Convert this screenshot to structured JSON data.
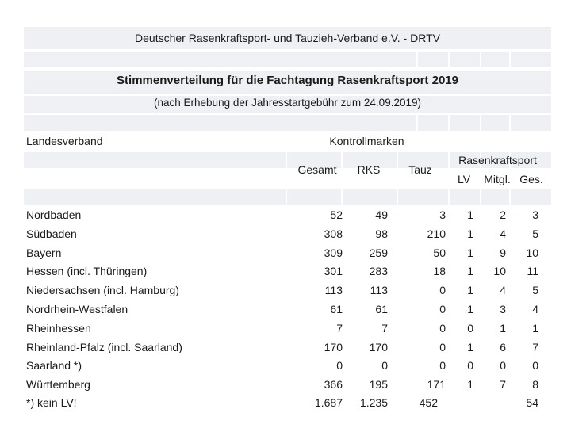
{
  "org": "Deutscher Rasenkraftsport- und Tauzieh-Verband e.V. - DRTV",
  "title": "Stimmenverteilung für die Fachtagung Rasenkraftsport 2019",
  "subtitle": "(nach Erhebung der Jahresstartgebühr zum 24.09.2019)",
  "headers": {
    "landesverband": "Landesverband",
    "kontrollmarken": "Kontrollmarken",
    "gesamt": "Gesamt",
    "rks": "RKS",
    "tauz": "Tauz",
    "rasenkraftsport": "Rasenkraftsport",
    "lv": "LV",
    "mitgl": "Mitgl.",
    "ges": "Ges."
  },
  "rows": [
    {
      "name": "Nordbaden",
      "gesamt": "52",
      "rks": "49",
      "tauz": "3",
      "lv": "1",
      "mitgl": "2",
      "ges": "3"
    },
    {
      "name": "Südbaden",
      "gesamt": "308",
      "rks": "98",
      "tauz": "210",
      "lv": "1",
      "mitgl": "4",
      "ges": "5"
    },
    {
      "name": "Bayern",
      "gesamt": "309",
      "rks": "259",
      "tauz": "50",
      "lv": "1",
      "mitgl": "9",
      "ges": "10"
    },
    {
      "name": "Hessen (incl. Thüringen)",
      "gesamt": "301",
      "rks": "283",
      "tauz": "18",
      "lv": "1",
      "mitgl": "10",
      "ges": "11"
    },
    {
      "name": "Niedersachsen (incl. Hamburg)",
      "gesamt": "113",
      "rks": "113",
      "tauz": "0",
      "lv": "1",
      "mitgl": "4",
      "ges": "5"
    },
    {
      "name": "Nordrhein-Westfalen",
      "gesamt": "61",
      "rks": "61",
      "tauz": "0",
      "lv": "1",
      "mitgl": "3",
      "ges": "4"
    },
    {
      "name": "Rheinhessen",
      "gesamt": "7",
      "rks": "7",
      "tauz": "0",
      "lv": "0",
      "mitgl": "1",
      "ges": "1"
    },
    {
      "name": "Rheinland-Pfalz  (incl. Saarland)",
      "gesamt": "170",
      "rks": "170",
      "tauz": "0",
      "lv": "1",
      "mitgl": "6",
      "ges": "7"
    },
    {
      "name": "Saarland *)",
      "gesamt": "0",
      "rks": "0",
      "tauz": "0",
      "lv": "0",
      "mitgl": "0",
      "ges": "0"
    },
    {
      "name": "Württemberg",
      "gesamt": "366",
      "rks": "195",
      "tauz": "171",
      "lv": "1",
      "mitgl": "7",
      "ges": "8"
    }
  ],
  "footer": {
    "name": "*) kein LV!",
    "gesamt": "1.687",
    "rks": "1.235",
    "tauz": "452",
    "ges": "54"
  },
  "colors": {
    "band": "#eef0f3",
    "text": "#1a1a1a"
  }
}
